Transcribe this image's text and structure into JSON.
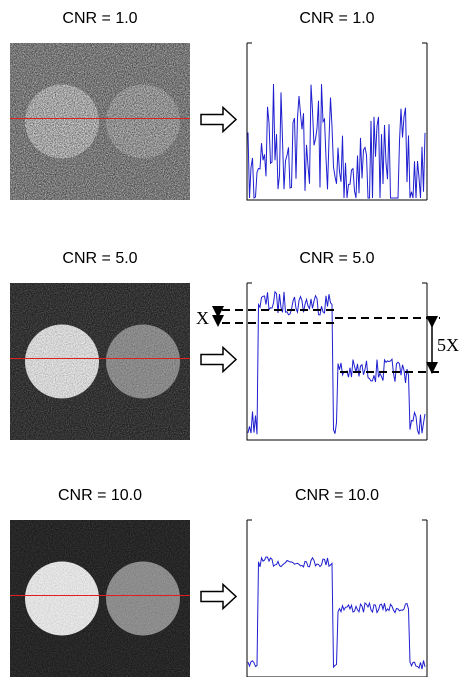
{
  "panels": [
    {
      "image_label": "CNR = 1.0",
      "profile_label": "CNR = 1.0"
    },
    {
      "image_label": "CNR = 5.0",
      "profile_label": "CNR = 5.0"
    },
    {
      "image_label": "CNR = 10.0",
      "profile_label": "CNR = 10.0"
    }
  ],
  "annotations": {
    "small_step": "X",
    "large_step": "5X"
  }
}
